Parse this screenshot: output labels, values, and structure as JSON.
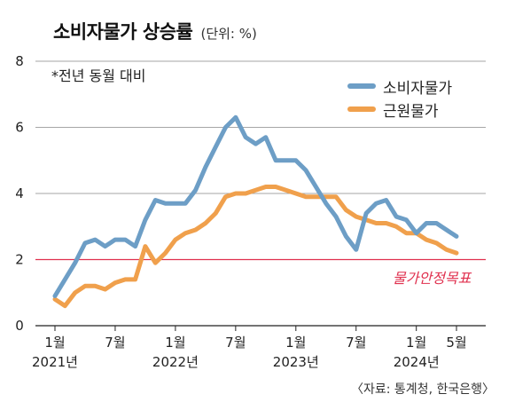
{
  "header": {
    "title": "소비자물가 상승률",
    "unit": "(단위: %)"
  },
  "note": "*전년 동월 대비",
  "source": "〈자료: 통계청, 한국은행〉",
  "chart_data": {
    "type": "line",
    "title": "소비자물가 상승률",
    "unit": "%",
    "x": [
      "2021-01",
      "2021-02",
      "2021-03",
      "2021-04",
      "2021-05",
      "2021-06",
      "2021-07",
      "2021-08",
      "2021-09",
      "2021-10",
      "2021-11",
      "2021-12",
      "2022-01",
      "2022-02",
      "2022-03",
      "2022-04",
      "2022-05",
      "2022-06",
      "2022-07",
      "2022-08",
      "2022-09",
      "2022-10",
      "2022-11",
      "2022-12",
      "2023-01",
      "2023-02",
      "2023-03",
      "2023-04",
      "2023-05",
      "2023-06",
      "2023-07",
      "2023-08",
      "2023-09",
      "2023-10",
      "2023-11",
      "2023-12",
      "2024-01",
      "2024-02",
      "2024-03",
      "2024-04",
      "2024-05"
    ],
    "ylim": [
      0,
      8
    ],
    "yticks": [
      0,
      2,
      4,
      6,
      8
    ],
    "grid": true,
    "legend_position": "top-right",
    "xtick_labels": [
      {
        "index": 0,
        "month": "1월",
        "year": "2021년"
      },
      {
        "index": 6,
        "month": "7월",
        "year": ""
      },
      {
        "index": 12,
        "month": "1월",
        "year": "2022년"
      },
      {
        "index": 18,
        "month": "7월",
        "year": ""
      },
      {
        "index": 24,
        "month": "1월",
        "year": "2023년"
      },
      {
        "index": 30,
        "month": "7월",
        "year": ""
      },
      {
        "index": 36,
        "month": "1월",
        "year": "2024년"
      },
      {
        "index": 40,
        "month": "5월",
        "year": ""
      }
    ],
    "series": [
      {
        "name": "소비자물가",
        "color": "#6d9ec6",
        "values": [
          0.9,
          1.4,
          1.9,
          2.5,
          2.6,
          2.4,
          2.6,
          2.6,
          2.4,
          3.2,
          3.8,
          3.7,
          3.7,
          3.7,
          4.1,
          4.8,
          5.4,
          6.0,
          6.3,
          5.7,
          5.5,
          5.7,
          5.0,
          5.0,
          5.0,
          4.7,
          4.2,
          3.7,
          3.3,
          2.7,
          2.3,
          3.4,
          3.7,
          3.8,
          3.3,
          3.2,
          2.8,
          3.1,
          3.1,
          2.9,
          2.7
        ]
      },
      {
        "name": "근원물가",
        "color": "#f0a04c",
        "values": [
          0.8,
          0.6,
          1.0,
          1.2,
          1.2,
          1.1,
          1.3,
          1.4,
          1.4,
          2.4,
          1.9,
          2.2,
          2.6,
          2.8,
          2.9,
          3.1,
          3.4,
          3.9,
          4.0,
          4.0,
          4.1,
          4.2,
          4.2,
          4.1,
          4.0,
          3.9,
          3.9,
          3.9,
          3.9,
          3.5,
          3.3,
          3.2,
          3.1,
          3.1,
          3.0,
          2.8,
          2.8,
          2.6,
          2.5,
          2.3,
          2.2
        ]
      }
    ],
    "reference_line": {
      "value": 2,
      "label": "물가안정목표",
      "color": "#e0304e"
    }
  }
}
